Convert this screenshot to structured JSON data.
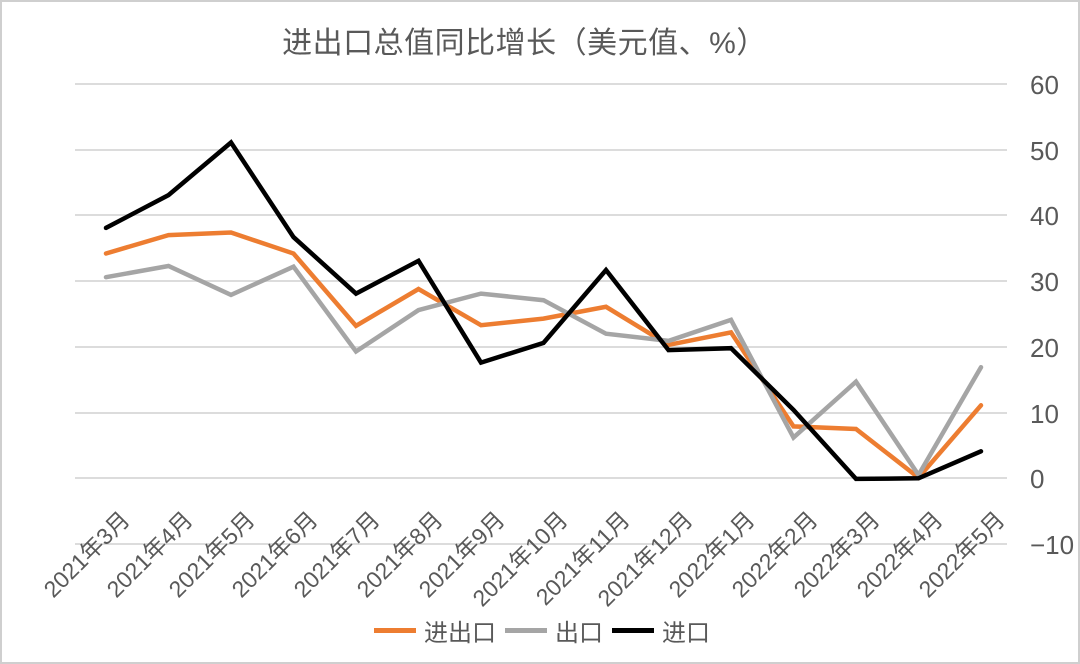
{
  "title": "进出口总值同比增长（美元值、%）",
  "colors": {
    "total_line": "#ED7D31",
    "export_line": "#A5A5A5",
    "import_line": "#000000",
    "grid": "#DCDCDC",
    "text": "#595959",
    "frame": "#CFCFCF",
    "background": "#FFFFFF"
  },
  "chart_data": {
    "type": "line",
    "title": "进出口总值同比增长（美元值、%）",
    "categories": [
      "2021年3月",
      "2021年4月",
      "2021年5月",
      "2021年6月",
      "2021年7月",
      "2021年8月",
      "2021年9月",
      "2021年10月",
      "2021年11月",
      "2021年12月",
      "2022年1月",
      "2022年2月",
      "2022年3月",
      "2022年4月",
      "2022年5月"
    ],
    "series": [
      {
        "name": "进出口",
        "color": "#ED7D31",
        "values": [
          34.2,
          37.0,
          37.4,
          34.2,
          23.2,
          28.8,
          23.3,
          24.3,
          26.1,
          20.3,
          22.2,
          7.9,
          7.5,
          0.1,
          11.1
        ]
      },
      {
        "name": "出口",
        "color": "#A5A5A5",
        "values": [
          30.6,
          32.3,
          27.9,
          32.2,
          19.3,
          25.6,
          28.1,
          27.1,
          22.0,
          20.9,
          24.1,
          6.2,
          14.7,
          0.5,
          16.9
        ]
      },
      {
        "name": "进口",
        "color": "#000000",
        "values": [
          38.1,
          43.1,
          51.1,
          36.7,
          28.1,
          33.1,
          17.6,
          20.6,
          31.7,
          19.5,
          19.8,
          10.4,
          -0.1,
          0.0,
          4.1
        ]
      }
    ],
    "xlabel": "",
    "ylabel": "",
    "ylim": [
      -10,
      60
    ],
    "yticks": [
      60,
      50,
      40,
      30,
      20,
      10,
      0,
      -10
    ],
    "ytick_labels": [
      "60",
      "50",
      "40",
      "30",
      "20",
      "10",
      "0",
      "−10"
    ],
    "grid": "horizontal",
    "legend_position": "bottom",
    "legend_entries": [
      "进出口",
      "出口",
      "进口"
    ]
  }
}
